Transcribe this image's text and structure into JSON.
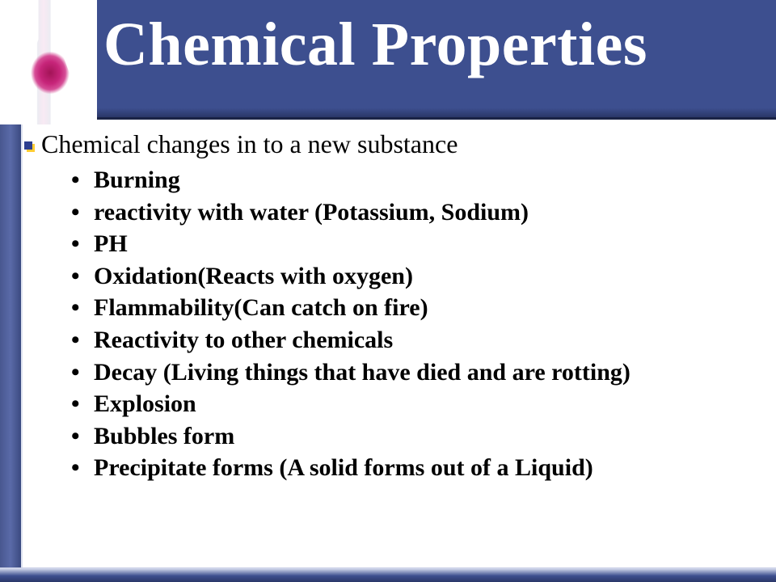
{
  "colors": {
    "header_bg": "#3d4f8f",
    "header_border": "#1a2346",
    "title_color": "#ffffff",
    "text_color": "#000000",
    "sidebar_gradient_from": "#48578f",
    "sidebar_gradient_to": "#3b4a80",
    "bullet_front": "#2c3e8f",
    "bullet_back": "#ffcc33",
    "flask_liquid": "#a31457",
    "footer_light": "#d9def0"
  },
  "typography": {
    "title_fontsize": 76,
    "subtitle_fontsize": 32,
    "list_fontsize": 30,
    "font_family": "Times New Roman"
  },
  "title": "Chemical Properties",
  "subtitle": "Chemical changes in to a new substance",
  "items": [
    "Burning",
    "reactivity with water (Potassium, Sodium)",
    "PH",
    "Oxidation(Reacts with oxygen)",
    "Flammability(Can catch on fire)",
    "Reactivity to other chemicals",
    "Decay (Living things that have died and are rotting)",
    "Explosion",
    "Bubbles form",
    "Precipitate forms (A solid forms out of a Liquid)"
  ]
}
